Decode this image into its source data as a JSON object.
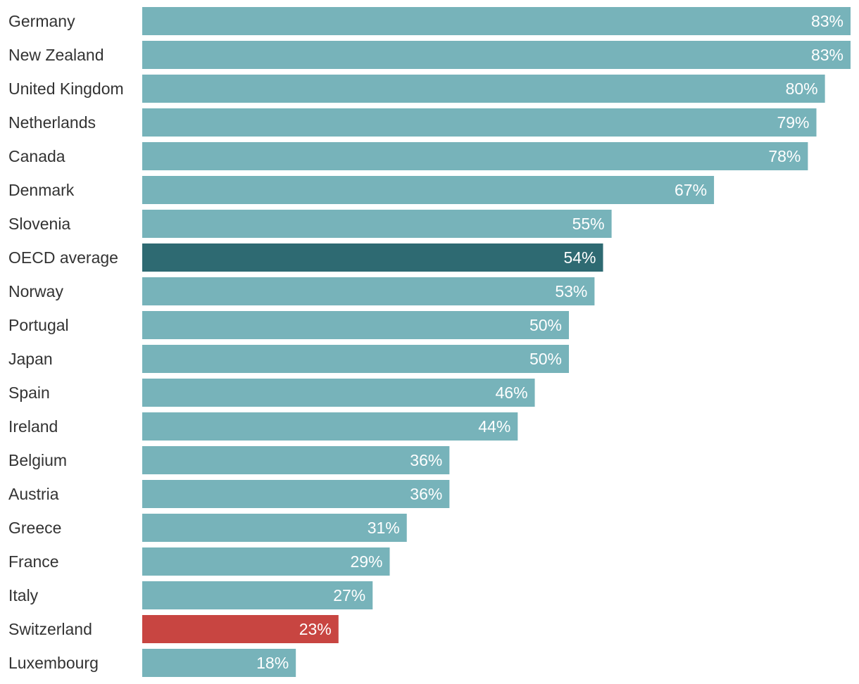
{
  "chart_data": {
    "type": "bar",
    "orientation": "horizontal",
    "categories": [
      "Germany",
      "New Zealand",
      "United Kingdom",
      "Netherlands",
      "Canada",
      "Denmark",
      "Slovenia",
      "OECD average",
      "Norway",
      "Portugal",
      "Japan",
      "Spain",
      "Ireland",
      "Belgium",
      "Austria",
      "Greece",
      "France",
      "Italy",
      "Switzerland",
      "Luxembourg"
    ],
    "values": [
      83,
      83,
      80,
      79,
      78,
      67,
      55,
      54,
      53,
      50,
      50,
      46,
      44,
      36,
      36,
      31,
      29,
      27,
      23,
      18
    ],
    "value_labels": [
      "83%",
      "83%",
      "80%",
      "79%",
      "78%",
      "67%",
      "55%",
      "54%",
      "53%",
      "50%",
      "50%",
      "46%",
      "44%",
      "36%",
      "36%",
      "31%",
      "29%",
      "27%",
      "23%",
      "18%"
    ],
    "xlim": [
      0,
      83
    ],
    "grid": false,
    "legend": "none",
    "title": "",
    "xlabel": "",
    "ylabel": ""
  },
  "colors": {
    "default_bar": "#77b3ba",
    "highlight_average": "#2e6a72",
    "highlight_switzerland": "#c84541",
    "category_text": "#333333",
    "value_text": "#ffffff"
  },
  "highlights": {
    "OECD average": "highlight_average",
    "Switzerland": "highlight_switzerland"
  }
}
